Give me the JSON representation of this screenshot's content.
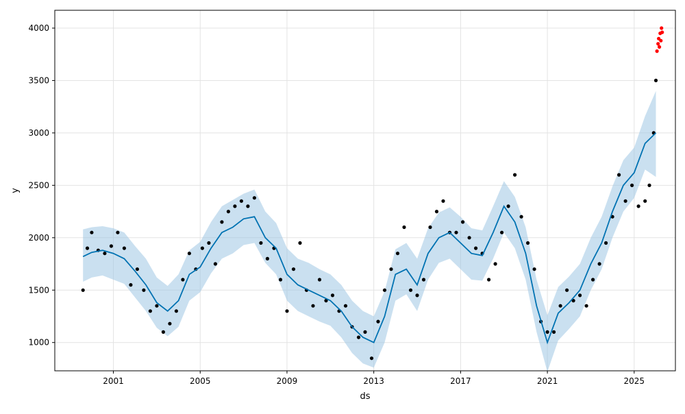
{
  "chart_data": {
    "type": "scatter",
    "title": "",
    "xlabel": "ds",
    "ylabel": "y",
    "xlim": [
      1998.3,
      2026.9
    ],
    "ylim": [
      730,
      4170
    ],
    "x_ticks": [
      2001,
      2005,
      2009,
      2013,
      2017,
      2021,
      2025
    ],
    "x_tick_labels": [
      "2001",
      "2005",
      "2009",
      "2013",
      "2017",
      "2021",
      "2025"
    ],
    "y_ticks": [
      1000,
      1500,
      2000,
      2500,
      3000,
      3500,
      4000
    ],
    "y_tick_labels": [
      "1000",
      "1500",
      "2000",
      "2500",
      "3000",
      "3500",
      "4000"
    ],
    "grid": true,
    "colors": {
      "observed": "#000000",
      "forecast_points": "#ff0000",
      "trend": "#0072b2",
      "band": "#9fc7e3"
    },
    "series": [
      {
        "role": "observed",
        "x": [
          1999.6,
          1999.8,
          2000.0,
          2000.3,
          2000.6,
          2000.9,
          2001.2,
          2001.5,
          2001.8,
          2002.1,
          2002.4,
          2002.7,
          2003.0,
          2003.3,
          2003.6,
          2003.9,
          2004.2,
          2004.5,
          2004.8,
          2005.1,
          2005.4,
          2005.7,
          2006.0,
          2006.3,
          2006.6,
          2006.9,
          2007.2,
          2007.5,
          2007.8,
          2008.1,
          2008.4,
          2008.7,
          2009.0,
          2009.3,
          2009.6,
          2009.9,
          2010.2,
          2010.5,
          2010.8,
          2011.1,
          2011.4,
          2011.7,
          2012.0,
          2012.3,
          2012.6,
          2012.9,
          2013.2,
          2013.5,
          2013.8,
          2014.1,
          2014.4,
          2014.7,
          2015.0,
          2015.3,
          2015.6,
          2015.9,
          2016.2,
          2016.5,
          2016.8,
          2017.1,
          2017.4,
          2017.7,
          2018.0,
          2018.3,
          2018.6,
          2018.9,
          2019.2,
          2019.5,
          2019.8,
          2020.1,
          2020.4,
          2020.7,
          2021.0,
          2021.3,
          2021.6,
          2021.9,
          2022.2,
          2022.5,
          2022.8,
          2023.1,
          2023.4,
          2023.7,
          2024.0,
          2024.3,
          2024.6,
          2024.9,
          2025.2,
          2025.5,
          2025.7,
          2025.9,
          2026.0
        ],
        "y": [
          1500,
          1900,
          2050,
          1880,
          1850,
          1920,
          2050,
          1900,
          1550,
          1700,
          1500,
          1300,
          1350,
          1100,
          1180,
          1300,
          1600,
          1850,
          1700,
          1900,
          1950,
          1750,
          2150,
          2250,
          2300,
          2350,
          2300,
          2380,
          1950,
          1800,
          1900,
          1600,
          1300,
          1700,
          1950,
          1500,
          1350,
          1600,
          1400,
          1450,
          1300,
          1350,
          1150,
          1050,
          1100,
          850,
          1200,
          1500,
          1700,
          1850,
          2100,
          1500,
          1450,
          1600,
          2100,
          2250,
          2350,
          2050,
          2050,
          2150,
          2000,
          1900,
          1850,
          1600,
          1750,
          2050,
          2300,
          2600,
          2200,
          1950,
          1700,
          1200,
          1100,
          1100,
          1350,
          1500,
          1400,
          1450,
          1350,
          1600,
          1750,
          1950,
          2200,
          2600,
          2350,
          2500,
          2300,
          2350,
          2500,
          3000,
          3500
        ]
      },
      {
        "role": "forecast_points",
        "x": [
          2026.05,
          2026.1,
          2026.13,
          2026.16,
          2026.2,
          2026.23,
          2026.26,
          2026.29
        ],
        "y": [
          3780,
          3850,
          3900,
          3820,
          3950,
          3880,
          4000,
          3960
        ]
      },
      {
        "role": "trend",
        "x": [
          1999.6,
          2000.0,
          2000.5,
          2001.0,
          2001.5,
          2002.0,
          2002.5,
          2003.0,
          2003.5,
          2004.0,
          2004.5,
          2005.0,
          2005.5,
          2006.0,
          2006.5,
          2007.0,
          2007.5,
          2008.0,
          2008.5,
          2009.0,
          2009.5,
          2010.0,
          2010.5,
          2011.0,
          2011.5,
          2012.0,
          2012.5,
          2013.0,
          2013.5,
          2014.0,
          2014.5,
          2015.0,
          2015.5,
          2016.0,
          2016.5,
          2017.0,
          2017.5,
          2018.0,
          2018.5,
          2019.0,
          2019.5,
          2020.0,
          2020.5,
          2021.0,
          2021.5,
          2022.0,
          2022.5,
          2023.0,
          2023.5,
          2024.0,
          2024.5,
          2025.0,
          2025.5,
          2026.0
        ],
        "y": [
          1820,
          1860,
          1880,
          1850,
          1800,
          1680,
          1550,
          1380,
          1300,
          1400,
          1650,
          1720,
          1900,
          2050,
          2100,
          2180,
          2200,
          2000,
          1900,
          1650,
          1550,
          1500,
          1450,
          1400,
          1300,
          1150,
          1050,
          1000,
          1250,
          1650,
          1700,
          1550,
          1850,
          2000,
          2050,
          1950,
          1850,
          1830,
          2050,
          2300,
          2150,
          1850,
          1350,
          1000,
          1280,
          1380,
          1500,
          1750,
          1950,
          2250,
          2500,
          2620,
          2900,
          3000
        ]
      },
      {
        "role": "band_upper",
        "x": [
          1999.6,
          2000.0,
          2000.5,
          2001.0,
          2001.5,
          2002.0,
          2002.5,
          2003.0,
          2003.5,
          2004.0,
          2004.5,
          2005.0,
          2005.5,
          2006.0,
          2006.5,
          2007.0,
          2007.5,
          2008.0,
          2008.5,
          2009.0,
          2009.5,
          2010.0,
          2010.5,
          2011.0,
          2011.5,
          2012.0,
          2012.5,
          2013.0,
          2013.5,
          2014.0,
          2014.5,
          2015.0,
          2015.5,
          2016.0,
          2016.5,
          2017.0,
          2017.5,
          2018.0,
          2018.5,
          2019.0,
          2019.5,
          2020.0,
          2020.5,
          2021.0,
          2021.5,
          2022.0,
          2022.5,
          2023.0,
          2023.5,
          2024.0,
          2024.5,
          2025.0,
          2025.5,
          2026.0
        ],
        "y": [
          2080,
          2100,
          2110,
          2090,
          2050,
          1920,
          1800,
          1620,
          1540,
          1650,
          1880,
          1960,
          2150,
          2300,
          2360,
          2420,
          2460,
          2250,
          2140,
          1900,
          1800,
          1760,
          1700,
          1650,
          1550,
          1400,
          1300,
          1250,
          1490,
          1890,
          1950,
          1800,
          2090,
          2240,
          2290,
          2200,
          2090,
          2070,
          2300,
          2540,
          2390,
          2100,
          1600,
          1260,
          1530,
          1630,
          1750,
          2000,
          2200,
          2490,
          2740,
          2860,
          3160,
          3400
        ]
      },
      {
        "role": "band_lower",
        "x": [
          1999.6,
          2000.0,
          2000.5,
          2001.0,
          2001.5,
          2002.0,
          2002.5,
          2003.0,
          2003.5,
          2004.0,
          2004.5,
          2005.0,
          2005.5,
          2006.0,
          2006.5,
          2007.0,
          2007.5,
          2008.0,
          2008.5,
          2009.0,
          2009.5,
          2010.0,
          2010.5,
          2011.0,
          2011.5,
          2012.0,
          2012.5,
          2013.0,
          2013.5,
          2014.0,
          2014.5,
          2015.0,
          2015.5,
          2016.0,
          2016.5,
          2017.0,
          2017.5,
          2018.0,
          2018.5,
          2019.0,
          2019.5,
          2020.0,
          2020.5,
          2021.0,
          2021.5,
          2022.0,
          2022.5,
          2023.0,
          2023.5,
          2024.0,
          2024.5,
          2025.0,
          2025.5,
          2026.0
        ],
        "y": [
          1580,
          1620,
          1640,
          1600,
          1560,
          1430,
          1300,
          1140,
          1060,
          1150,
          1400,
          1480,
          1660,
          1800,
          1850,
          1930,
          1950,
          1760,
          1650,
          1400,
          1300,
          1250,
          1200,
          1160,
          1050,
          900,
          800,
          760,
          1000,
          1400,
          1460,
          1300,
          1600,
          1760,
          1800,
          1700,
          1600,
          1590,
          1800,
          2050,
          1900,
          1600,
          1100,
          720,
          1020,
          1130,
          1250,
          1500,
          1700,
          2000,
          2250,
          2380,
          2650,
          2580
        ]
      }
    ]
  }
}
